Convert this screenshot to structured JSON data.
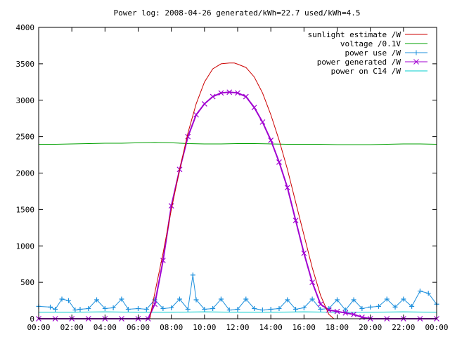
{
  "chart_data": {
    "type": "line",
    "title": "Power log: 2008-04-26 generated/kWh=22.7 used/kWh=4.5",
    "xlabel": "",
    "ylabel": "",
    "xlim": [
      0,
      24
    ],
    "ylim": [
      0,
      4000
    ],
    "x_ticks": [
      "00:00",
      "02:00",
      "04:00",
      "06:00",
      "08:00",
      "10:00",
      "12:00",
      "14:00",
      "16:00",
      "18:00",
      "20:00",
      "22:00",
      "00:00"
    ],
    "y_ticks": [
      "0",
      "500",
      "1000",
      "1500",
      "2000",
      "2500",
      "3000",
      "3500",
      "4000"
    ],
    "grid": false,
    "legend_position": "top-right",
    "series": [
      {
        "name": "sunlight estimate /W",
        "color": "#cc0000",
        "marker": "none",
        "x": [
          6.7,
          7.0,
          7.5,
          8.0,
          8.5,
          9.0,
          9.5,
          10.0,
          10.5,
          11.0,
          11.5,
          11.8,
          12.0,
          12.5,
          13.0,
          13.5,
          14.0,
          14.5,
          15.0,
          15.5,
          16.0,
          16.5,
          17.0,
          17.5,
          17.8
        ],
        "values": [
          0,
          350,
          900,
          1500,
          2050,
          2550,
          2950,
          3250,
          3430,
          3500,
          3510,
          3510,
          3495,
          3450,
          3320,
          3100,
          2800,
          2450,
          2050,
          1600,
          1150,
          700,
          320,
          60,
          0
        ]
      },
      {
        "name": "voltage /0.1V",
        "color": "#00a000",
        "marker": "none",
        "x": [
          0,
          1,
          2,
          3,
          4,
          5,
          6,
          7,
          8,
          9,
          10,
          11,
          12,
          13,
          14,
          15,
          16,
          17,
          18,
          19,
          20,
          21,
          22,
          23,
          24
        ],
        "values": [
          2395,
          2395,
          2400,
          2405,
          2410,
          2410,
          2415,
          2420,
          2415,
          2405,
          2400,
          2400,
          2405,
          2405,
          2400,
          2395,
          2395,
          2395,
          2390,
          2390,
          2390,
          2395,
          2400,
          2400,
          2395
        ]
      },
      {
        "name": "power use /W",
        "color": "#1e90dd",
        "marker": "+",
        "x": [
          0,
          0.7,
          1.0,
          1.4,
          1.8,
          2.2,
          2.5,
          3.0,
          3.5,
          4.0,
          4.5,
          5.0,
          5.4,
          6.0,
          6.5,
          7.0,
          7.5,
          8.0,
          8.5,
          9.0,
          9.3,
          9.5,
          10.0,
          10.5,
          11.0,
          11.5,
          12.0,
          12.5,
          13.0,
          13.5,
          14.0,
          14.5,
          15.0,
          15.5,
          16.0,
          16.5,
          17.0,
          17.5,
          18.0,
          18.5,
          19.0,
          19.5,
          20.0,
          20.5,
          21.0,
          21.5,
          22.0,
          22.5,
          23.0,
          23.5,
          24.0
        ],
        "values": [
          170,
          160,
          130,
          270,
          250,
          120,
          130,
          140,
          260,
          140,
          150,
          270,
          130,
          140,
          130,
          260,
          140,
          150,
          270,
          130,
          600,
          260,
          130,
          140,
          270,
          120,
          130,
          270,
          140,
          120,
          130,
          140,
          260,
          130,
          150,
          270,
          130,
          140,
          260,
          120,
          260,
          140,
          160,
          170,
          270,
          160,
          270,
          170,
          380,
          350,
          200
        ]
      },
      {
        "name": "power generated /W",
        "color": "#a000d0",
        "marker": "x",
        "x": [
          0,
          1,
          2,
          3,
          4,
          5,
          6,
          6.6,
          7.0,
          7.5,
          8.0,
          8.5,
          9.0,
          9.5,
          10.0,
          10.5,
          11.0,
          11.5,
          12.0,
          12.5,
          13.0,
          13.5,
          14.0,
          14.5,
          15.0,
          15.5,
          16.0,
          16.5,
          17.0,
          17.5,
          18.0,
          18.5,
          19.0,
          19.5,
          20,
          21,
          22,
          23,
          24
        ],
        "values": [
          0,
          0,
          0,
          0,
          0,
          0,
          0,
          0,
          200,
          800,
          1550,
          2050,
          2500,
          2800,
          2950,
          3050,
          3100,
          3110,
          3100,
          3050,
          2900,
          2700,
          2450,
          2150,
          1800,
          1350,
          900,
          500,
          200,
          120,
          100,
          80,
          60,
          20,
          0,
          0,
          0,
          0,
          0
        ]
      },
      {
        "name": "power on C14 /W",
        "color": "#00cccc",
        "marker": "none",
        "x": [
          0,
          2,
          4,
          6,
          8,
          10,
          12,
          14,
          16,
          18,
          20,
          22,
          24
        ],
        "values": [
          90,
          90,
          95,
          90,
          90,
          95,
          90,
          90,
          95,
          90,
          90,
          95,
          90
        ]
      }
    ]
  }
}
